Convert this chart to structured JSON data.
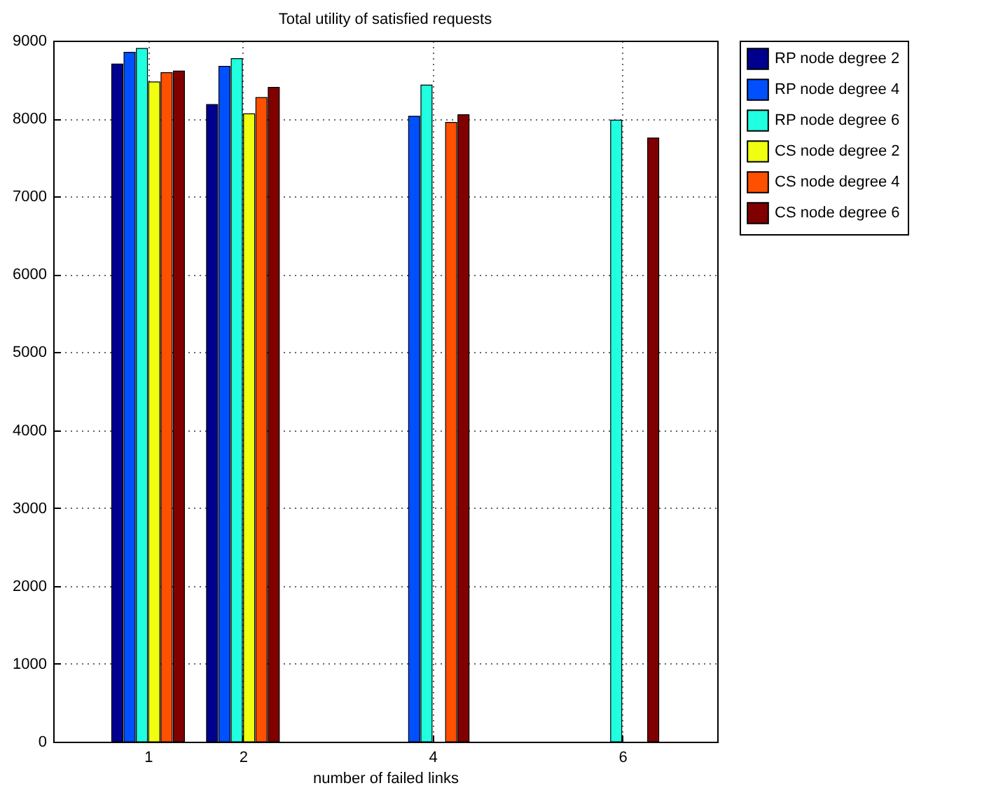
{
  "chart_data": {
    "type": "bar",
    "title": "Total utility of satisfied requests",
    "xlabel": "number of failed links",
    "x": [
      1,
      2,
      4,
      6
    ],
    "series": [
      {
        "name": "RP node degree 2",
        "color": "#00008f",
        "values": [
          8700,
          8180,
          null,
          null
        ]
      },
      {
        "name": "RP node degree 4",
        "color": "#0050ff",
        "values": [
          8850,
          8670,
          8030,
          null
        ]
      },
      {
        "name": "RP node degree 6",
        "color": "#20ffe0",
        "values": [
          8900,
          8770,
          8430,
          7980
        ]
      },
      {
        "name": "CS node degree 2",
        "color": "#f0ff10",
        "values": [
          8470,
          8060,
          null,
          null
        ]
      },
      {
        "name": "CS node degree 4",
        "color": "#ff5000",
        "values": [
          8590,
          8270,
          7950,
          null
        ]
      },
      {
        "name": "CS node degree 6",
        "color": "#800000",
        "values": [
          8610,
          8400,
          8050,
          7750
        ]
      }
    ],
    "xlim": [
      0,
      7
    ],
    "xticks": [
      1,
      2,
      4,
      6
    ],
    "ylim": [
      0,
      9000
    ],
    "yticks": [
      0,
      1000,
      2000,
      3000,
      4000,
      5000,
      6000,
      7000,
      8000,
      9000
    ],
    "grid": true,
    "legend": "top right"
  }
}
